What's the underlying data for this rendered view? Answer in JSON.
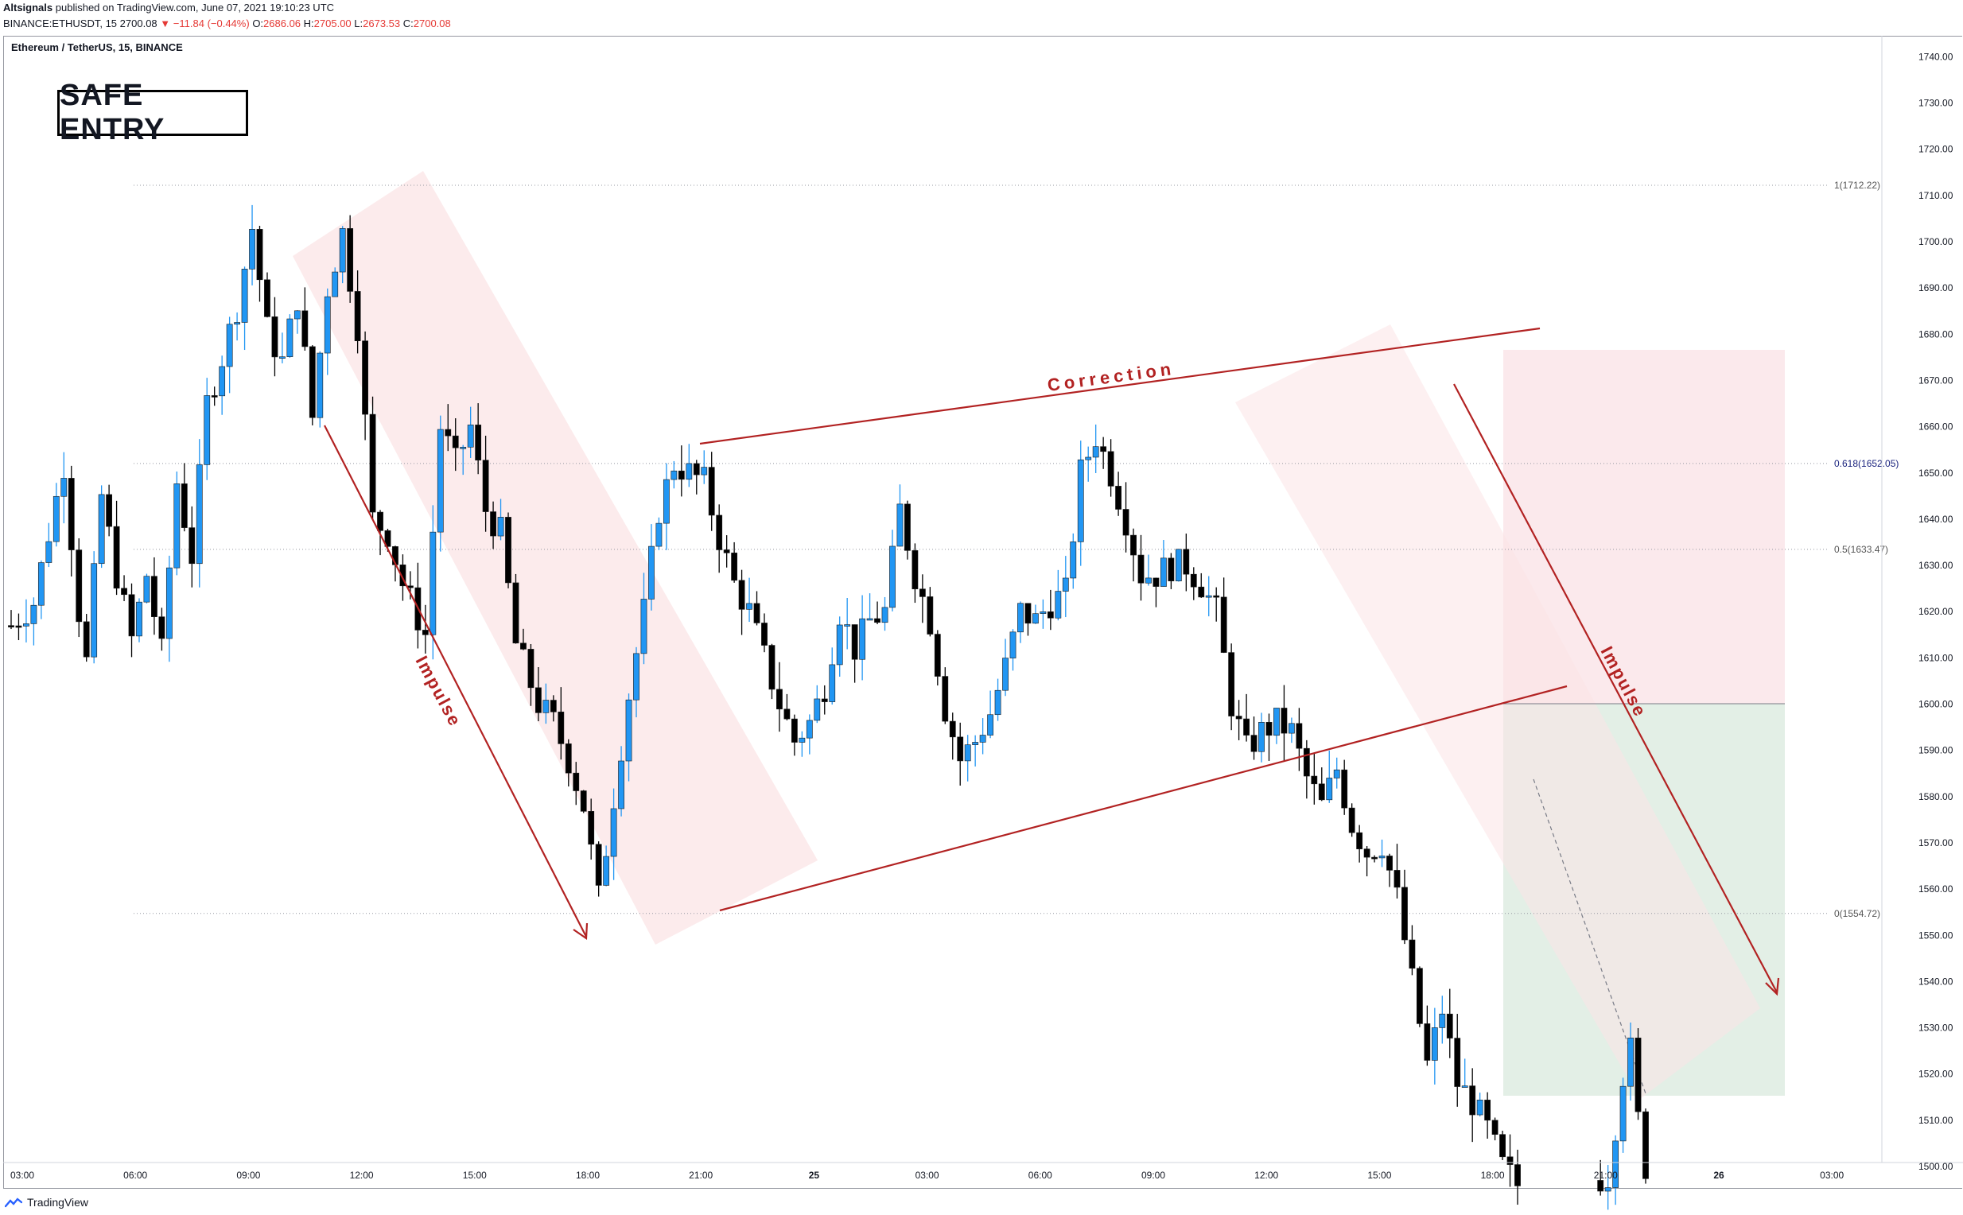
{
  "header": {
    "publisher": "Altsignals",
    "published_text": "published on TradingView.com, June 07, 2021 19:10:23 UTC",
    "symbol_line": "BINANCE:ETHUSDT, 15",
    "last_price": "2700.08",
    "change_arrow": "▼",
    "change": "−11.84 (−0.44%)",
    "o_label": "O:",
    "o_value": "2686.06",
    "h_label": "H:",
    "h_value": "2705.00",
    "l_label": "L:",
    "l_value": "2673.53",
    "c_label": "C:",
    "c_value": "2700.08"
  },
  "chart_title": "Ethereum / TetherUS, 15, BINANCE",
  "badge": "SAFE ENTRY",
  "footer": {
    "brand": "TradingView"
  },
  "colors": {
    "up": "#2196f3",
    "down": "#000000",
    "annotation": "#b22222",
    "channel": "#fbe4e6",
    "target_zone": "#e3efe6",
    "stop_zone": "#fbe9ec"
  },
  "chart_data": {
    "type": "candlestick",
    "ylim": [
      1495,
      1742
    ],
    "y_ticks": [
      "1740.00",
      "1730.00",
      "1720.00",
      "1710.00",
      "1700.00",
      "1690.00",
      "1680.00",
      "1670.00",
      "1660.00",
      "1650.00",
      "1640.00",
      "1630.00",
      "1620.00",
      "1610.00",
      "1600.00",
      "1590.00",
      "1580.00",
      "1570.00",
      "1560.00",
      "1550.00",
      "1540.00",
      "1530.00",
      "1520.00",
      "1510.00",
      "1500.00"
    ],
    "x_ticks": [
      "03:00",
      "06:00",
      "09:00",
      "12:00",
      "15:00",
      "18:00",
      "21:00",
      "25",
      "03:00",
      "06:00",
      "09:00",
      "12:00",
      "15:00",
      "18:00",
      "21:00",
      "26",
      "03:00"
    ],
    "fib_levels": [
      {
        "label": "1(1712.22)",
        "price": 1712.22
      },
      {
        "label": "0.618(1652.05)",
        "price": 1652.05
      },
      {
        "label": "0.5(1633.47)",
        "price": 1633.47
      },
      {
        "label": "0(1554.72)",
        "price": 1554.72
      }
    ],
    "annotations": [
      "Impulse",
      "Correction",
      "Impulse"
    ],
    "waypoints": [
      [
        0,
        1617
      ],
      [
        3,
        1622
      ],
      [
        5,
        1637
      ],
      [
        7,
        1652
      ],
      [
        9,
        1620
      ],
      [
        10,
        1609
      ],
      [
        12,
        1645
      ],
      [
        14,
        1628
      ],
      [
        16,
        1614
      ],
      [
        18,
        1628
      ],
      [
        20,
        1611
      ],
      [
        22,
        1648
      ],
      [
        24,
        1632
      ],
      [
        26,
        1665
      ],
      [
        28,
        1675
      ],
      [
        30,
        1686
      ],
      [
        32,
        1703
      ],
      [
        34,
        1681
      ],
      [
        36,
        1674
      ],
      [
        38,
        1688
      ],
      [
        40,
        1662
      ],
      [
        42,
        1690
      ],
      [
        44,
        1702
      ],
      [
        46,
        1682
      ],
      [
        48,
        1640
      ],
      [
        50,
        1637
      ],
      [
        52,
        1626
      ],
      [
        55,
        1615
      ],
      [
        57,
        1660
      ],
      [
        59,
        1652
      ],
      [
        61,
        1660
      ],
      [
        63,
        1642
      ],
      [
        65,
        1637
      ],
      [
        67,
        1613
      ],
      [
        70,
        1600
      ],
      [
        72,
        1596
      ],
      [
        74,
        1588
      ],
      [
        76,
        1578
      ],
      [
        78,
        1558
      ],
      [
        80,
        1580
      ],
      [
        82,
        1602
      ],
      [
        84,
        1620
      ],
      [
        86,
        1642
      ],
      [
        88,
        1652
      ],
      [
        90,
        1650
      ],
      [
        92,
        1648
      ],
      [
        94,
        1636
      ],
      [
        96,
        1626
      ],
      [
        98,
        1620
      ],
      [
        100,
        1610
      ],
      [
        102,
        1600
      ],
      [
        104,
        1592
      ],
      [
        106,
        1596
      ],
      [
        108,
        1604
      ],
      [
        110,
        1620
      ],
      [
        112,
        1612
      ],
      [
        114,
        1618
      ],
      [
        116,
        1620
      ],
      [
        118,
        1642
      ],
      [
        120,
        1628
      ],
      [
        122,
        1618
      ],
      [
        124,
        1599
      ],
      [
        126,
        1588
      ],
      [
        128,
        1592
      ],
      [
        130,
        1598
      ],
      [
        132,
        1608
      ],
      [
        134,
        1620
      ],
      [
        136,
        1618
      ],
      [
        138,
        1622
      ],
      [
        140,
        1624
      ],
      [
        142,
        1650
      ],
      [
        144,
        1658
      ],
      [
        146,
        1650
      ],
      [
        148,
        1640
      ],
      [
        150,
        1628
      ],
      [
        152,
        1628
      ],
      [
        154,
        1630
      ],
      [
        156,
        1630
      ],
      [
        158,
        1626
      ],
      [
        160,
        1620
      ],
      [
        162,
        1600
      ],
      [
        164,
        1590
      ],
      [
        166,
        1594
      ],
      [
        168,
        1596
      ],
      [
        170,
        1594
      ],
      [
        172,
        1584
      ],
      [
        174,
        1578
      ],
      [
        176,
        1586
      ],
      [
        178,
        1574
      ],
      [
        180,
        1568
      ],
      [
        182,
        1570
      ],
      [
        184,
        1558
      ],
      [
        186,
        1540
      ],
      [
        188,
        1522
      ],
      [
        190,
        1534
      ],
      [
        192,
        1518
      ],
      [
        194,
        1514
      ],
      [
        196,
        1508
      ],
      [
        198,
        1500
      ],
      [
        200,
        1496
      ],
      [
        204,
        1496
      ],
      [
        208,
        1496
      ],
      [
        212,
        1498
      ],
      [
        214,
        1520
      ],
      [
        215,
        1525
      ],
      [
        216,
        1510
      ],
      [
        217,
        1500
      ]
    ]
  }
}
